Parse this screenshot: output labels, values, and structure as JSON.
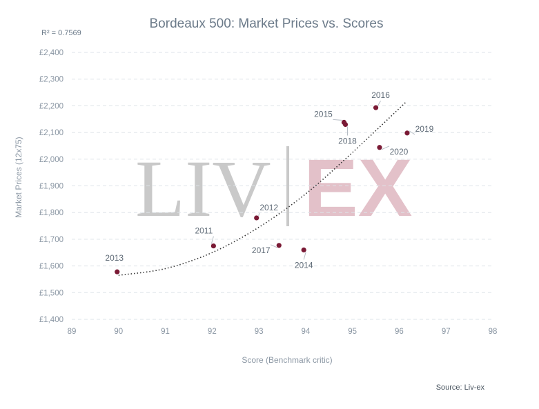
{
  "chart_data": {
    "type": "scatter",
    "title": "Bordeaux 500: Market Prices vs. Scores",
    "annotation": "R² = 0.7569",
    "xlabel": "Score (Benchmark critic)",
    "ylabel": "Market Prices (12x75)",
    "source": "Source: Liv-ex",
    "watermark": {
      "left": "LIV",
      "right": "EX"
    },
    "xlim": [
      89,
      98
    ],
    "ylim": [
      1400,
      2400
    ],
    "x_ticks": [
      89,
      90,
      91,
      92,
      93,
      94,
      95,
      96,
      97,
      98
    ],
    "y_ticks": [
      1400,
      1500,
      1600,
      1700,
      1800,
      1900,
      2000,
      2100,
      2200,
      2300,
      2400
    ],
    "y_tick_labels": [
      "£1,400",
      "£1,500",
      "£1,600",
      "£1,700",
      "£1,800",
      "£1,900",
      "£2,000",
      "£2,100",
      "£2,200",
      "£2,300",
      "£2,400"
    ],
    "x_tick_labels": [
      "89",
      "90",
      "91",
      "92",
      "93",
      "94",
      "95",
      "96",
      "97",
      "98"
    ],
    "grid": "horizontal-dashed",
    "points": [
      {
        "label": "2013",
        "x": 89.97,
        "y": 1578
      },
      {
        "label": "2011",
        "x": 92.03,
        "y": 1675
      },
      {
        "label": "2012",
        "x": 92.95,
        "y": 1780
      },
      {
        "label": "2017",
        "x": 93.43,
        "y": 1677
      },
      {
        "label": "2014",
        "x": 93.96,
        "y": 1660
      },
      {
        "label": "2015",
        "x": 94.82,
        "y": 2138
      },
      {
        "label": "2018",
        "x": 94.85,
        "y": 2130
      },
      {
        "label": "2016",
        "x": 95.5,
        "y": 2193
      },
      {
        "label": "2020",
        "x": 95.58,
        "y": 2044
      },
      {
        "label": "2019",
        "x": 96.17,
        "y": 2098
      }
    ],
    "trendline": {
      "type": "polynomial",
      "x_range": [
        90,
        96.15
      ],
      "points": [
        [
          90,
          1565
        ],
        [
          91,
          1590
        ],
        [
          92,
          1650
        ],
        [
          93,
          1745
        ],
        [
          94,
          1870
        ],
        [
          95,
          2025
        ],
        [
          96.15,
          2215
        ]
      ]
    },
    "colors": {
      "point": "#7a1a35",
      "trend": "#333333",
      "grid": "#dde3e8"
    }
  }
}
